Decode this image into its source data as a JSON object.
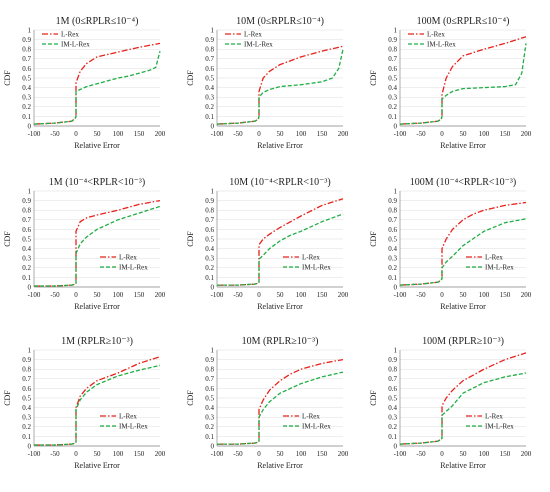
{
  "chart_data": [
    {
      "type": "line",
      "title": "1M (0≤RPLR≤10⁻⁴)",
      "xlabel": "Relative Error",
      "ylabel": "CDF",
      "xlim": [
        -100,
        200
      ],
      "ylim": [
        0,
        1
      ],
      "xticks": [
        "-100",
        "-50",
        "0",
        "50",
        "100",
        "150",
        "200"
      ],
      "yticks": [
        "0",
        "0.1",
        "0.2",
        "0.3",
        "0.4",
        "0.5",
        "0.6",
        "0.7",
        "0.8",
        "0.9",
        "1"
      ],
      "legend_position": "top-left",
      "series": [
        {
          "name": "L-Rex",
          "color": "#e8211a",
          "dash": "dashdot",
          "x": [
            -100,
            -50,
            -10,
            -2,
            0,
            0,
            10,
            25,
            50,
            100,
            150,
            200
          ],
          "y": [
            0.02,
            0.03,
            0.05,
            0.08,
            0.1,
            0.45,
            0.57,
            0.65,
            0.72,
            0.77,
            0.82,
            0.86
          ]
        },
        {
          "name": "IM-L-Rex",
          "color": "#1fae45",
          "dash": "dashed",
          "x": [
            -100,
            -50,
            -10,
            -2,
            0,
            0,
            10,
            25,
            50,
            75,
            100,
            125,
            150,
            175,
            190,
            200
          ],
          "y": [
            0.02,
            0.03,
            0.05,
            0.08,
            0.1,
            0.36,
            0.38,
            0.41,
            0.44,
            0.47,
            0.5,
            0.52,
            0.55,
            0.58,
            0.61,
            0.78
          ]
        }
      ]
    },
    {
      "type": "line",
      "title": "10M (0≤RPLR≤10⁻⁴)",
      "xlabel": "Relative Error",
      "ylabel": "CDF",
      "xlim": [
        -100,
        200
      ],
      "ylim": [
        0,
        1
      ],
      "xticks": [
        "-100",
        "-50",
        "0",
        "50",
        "100",
        "150",
        "200"
      ],
      "yticks": [
        "0",
        "0.1",
        "0.2",
        "0.3",
        "0.4",
        "0.5",
        "0.6",
        "0.7",
        "0.8",
        "0.9",
        "1"
      ],
      "legend_position": "top-left",
      "series": [
        {
          "name": "L-Rex",
          "color": "#e8211a",
          "dash": "dashdot",
          "x": [
            -100,
            -50,
            -10,
            -2,
            0,
            0,
            10,
            25,
            50,
            100,
            150,
            200
          ],
          "y": [
            0.02,
            0.03,
            0.05,
            0.07,
            0.1,
            0.36,
            0.5,
            0.57,
            0.64,
            0.72,
            0.78,
            0.83
          ]
        },
        {
          "name": "IM-L-Rex",
          "color": "#1fae45",
          "dash": "dashed",
          "x": [
            -100,
            -50,
            -10,
            -2,
            0,
            0,
            10,
            25,
            50,
            100,
            150,
            175,
            190,
            200
          ],
          "y": [
            0.02,
            0.03,
            0.05,
            0.07,
            0.1,
            0.3,
            0.35,
            0.38,
            0.41,
            0.43,
            0.46,
            0.5,
            0.6,
            0.8
          ]
        }
      ]
    },
    {
      "type": "line",
      "title": "100M (0≤RPLR≤10⁻⁴)",
      "xlabel": "Relative Error",
      "ylabel": "CDF",
      "xlim": [
        -100,
        200
      ],
      "ylim": [
        0,
        1
      ],
      "xticks": [
        "-100",
        "-50",
        "0",
        "50",
        "100",
        "150",
        "200"
      ],
      "yticks": [
        "0",
        "0.1",
        "0.2",
        "0.3",
        "0.4",
        "0.5",
        "0.6",
        "0.7",
        "0.8",
        "0.9",
        "1"
      ],
      "legend_position": "top-left",
      "series": [
        {
          "name": "L-Rex",
          "color": "#e8211a",
          "dash": "dashdot",
          "x": [
            -100,
            -50,
            -10,
            -2,
            0,
            0,
            10,
            25,
            50,
            100,
            150,
            200
          ],
          "y": [
            0.02,
            0.03,
            0.05,
            0.07,
            0.1,
            0.33,
            0.5,
            0.62,
            0.73,
            0.8,
            0.86,
            0.93
          ]
        },
        {
          "name": "IM-L-Rex",
          "color": "#1fae45",
          "dash": "dashed",
          "x": [
            -100,
            -50,
            -10,
            -2,
            0,
            0,
            10,
            25,
            50,
            100,
            150,
            175,
            190,
            200
          ],
          "y": [
            0.02,
            0.03,
            0.05,
            0.07,
            0.1,
            0.28,
            0.32,
            0.36,
            0.39,
            0.4,
            0.41,
            0.43,
            0.55,
            0.86
          ]
        }
      ]
    },
    {
      "type": "line",
      "title": "1M (10⁻⁴<RPLR<10⁻³)",
      "xlabel": "Relative Error",
      "ylabel": "CDF",
      "xlim": [
        -100,
        200
      ],
      "ylim": [
        0,
        1
      ],
      "xticks": [
        "-100",
        "-50",
        "0",
        "50",
        "100",
        "150",
        "200"
      ],
      "yticks": [
        "0",
        "0.1",
        "0.2",
        "0.3",
        "0.4",
        "0.5",
        "0.6",
        "0.7",
        "0.8",
        "0.9",
        "1"
      ],
      "legend_position": "bottom-right",
      "series": [
        {
          "name": "L-Rex",
          "color": "#e8211a",
          "dash": "dashdot",
          "x": [
            -100,
            -50,
            -10,
            -2,
            0,
            0,
            10,
            25,
            50,
            100,
            150,
            200
          ],
          "y": [
            0.01,
            0.01,
            0.02,
            0.03,
            0.04,
            0.58,
            0.68,
            0.72,
            0.75,
            0.8,
            0.86,
            0.9
          ]
        },
        {
          "name": "IM-L-Rex",
          "color": "#1fae45",
          "dash": "dashed",
          "x": [
            -100,
            -50,
            -10,
            -2,
            0,
            0,
            10,
            25,
            50,
            100,
            150,
            200
          ],
          "y": [
            0.01,
            0.01,
            0.02,
            0.03,
            0.04,
            0.35,
            0.45,
            0.52,
            0.6,
            0.7,
            0.77,
            0.84
          ]
        }
      ]
    },
    {
      "type": "line",
      "title": "10M (10⁻⁴<RPLR<10⁻³)",
      "xlabel": "Relative Error",
      "ylabel": "CDF",
      "xlim": [
        -100,
        200
      ],
      "ylim": [
        0,
        1
      ],
      "xticks": [
        "-100",
        "-50",
        "0",
        "50",
        "100",
        "150",
        "200"
      ],
      "yticks": [
        "0",
        "0.1",
        "0.2",
        "0.3",
        "0.4",
        "0.5",
        "0.6",
        "0.7",
        "0.8",
        "0.9",
        "1"
      ],
      "legend_position": "bottom-right",
      "series": [
        {
          "name": "L-Rex",
          "color": "#e8211a",
          "dash": "dashdot",
          "x": [
            -100,
            -50,
            -10,
            -2,
            0,
            0,
            10,
            25,
            50,
            100,
            150,
            200
          ],
          "y": [
            0.02,
            0.02,
            0.03,
            0.04,
            0.05,
            0.44,
            0.5,
            0.55,
            0.62,
            0.74,
            0.85,
            0.92
          ]
        },
        {
          "name": "IM-L-Rex",
          "color": "#1fae45",
          "dash": "dashed",
          "x": [
            -100,
            -50,
            -10,
            -2,
            0,
            0,
            10,
            25,
            50,
            75,
            100,
            150,
            200
          ],
          "y": [
            0.02,
            0.02,
            0.03,
            0.04,
            0.05,
            0.29,
            0.33,
            0.4,
            0.48,
            0.54,
            0.58,
            0.68,
            0.76
          ]
        }
      ]
    },
    {
      "type": "line",
      "title": "100M (10⁻⁴<RPLR<10⁻³)",
      "xlabel": "Relative Error",
      "ylabel": "CDF",
      "xlim": [
        -100,
        200
      ],
      "ylim": [
        0,
        1
      ],
      "xticks": [
        "-100",
        "-50",
        "0",
        "50",
        "100",
        "150",
        "200"
      ],
      "yticks": [
        "0",
        "0.1",
        "0.2",
        "0.3",
        "0.4",
        "0.5",
        "0.6",
        "0.7",
        "0.8",
        "0.9",
        "1"
      ],
      "legend_position": "bottom-right",
      "series": [
        {
          "name": "L-Rex",
          "color": "#e8211a",
          "dash": "dashdot",
          "x": [
            -100,
            -50,
            -10,
            -2,
            0,
            0,
            10,
            25,
            50,
            75,
            100,
            150,
            200
          ],
          "y": [
            0.02,
            0.03,
            0.05,
            0.07,
            0.09,
            0.4,
            0.5,
            0.6,
            0.7,
            0.76,
            0.8,
            0.85,
            0.88
          ]
        },
        {
          "name": "IM-L-Rex",
          "color": "#1fae45",
          "dash": "dashed",
          "x": [
            -100,
            -50,
            -10,
            -2,
            0,
            0,
            10,
            25,
            50,
            100,
            150,
            200
          ],
          "y": [
            0.02,
            0.03,
            0.05,
            0.07,
            0.09,
            0.2,
            0.26,
            0.32,
            0.43,
            0.58,
            0.67,
            0.71
          ]
        }
      ]
    },
    {
      "type": "line",
      "title": "1M (RPLR≥10⁻³)",
      "xlabel": "Relative Error",
      "ylabel": "CDF",
      "xlim": [
        -100,
        200
      ],
      "ylim": [
        0,
        1
      ],
      "xticks": [
        "-100",
        "-50",
        "0",
        "50",
        "100",
        "150",
        "200"
      ],
      "yticks": [
        "0",
        "0.1",
        "0.2",
        "0.3",
        "0.4",
        "0.5",
        "0.6",
        "0.7",
        "0.8",
        "0.9",
        "1"
      ],
      "legend_position": "bottom-right",
      "series": [
        {
          "name": "L-Rex",
          "color": "#e8211a",
          "dash": "dashdot",
          "x": [
            -100,
            -50,
            -10,
            -2,
            0,
            0,
            10,
            25,
            50,
            100,
            150,
            200
          ],
          "y": [
            0.01,
            0.01,
            0.02,
            0.03,
            0.04,
            0.4,
            0.52,
            0.6,
            0.68,
            0.76,
            0.86,
            0.93
          ]
        },
        {
          "name": "IM-L-Rex",
          "color": "#1fae45",
          "dash": "dashed",
          "x": [
            -100,
            -50,
            -10,
            -2,
            0,
            0,
            10,
            25,
            50,
            100,
            150,
            200
          ],
          "y": [
            0.01,
            0.01,
            0.02,
            0.03,
            0.04,
            0.38,
            0.48,
            0.56,
            0.64,
            0.73,
            0.79,
            0.84
          ]
        }
      ]
    },
    {
      "type": "line",
      "title": "10M (RPLR≥10⁻³)",
      "xlabel": "Relative Error",
      "ylabel": "CDF",
      "xlim": [
        -100,
        200
      ],
      "ylim": [
        0,
        1
      ],
      "xticks": [
        "-100",
        "-50",
        "0",
        "50",
        "100",
        "150",
        "200"
      ],
      "yticks": [
        "0",
        "0.1",
        "0.2",
        "0.3",
        "0.4",
        "0.5",
        "0.6",
        "0.7",
        "0.8",
        "0.9",
        "1"
      ],
      "legend_position": "bottom-right",
      "series": [
        {
          "name": "L-Rex",
          "color": "#e8211a",
          "dash": "dashdot",
          "x": [
            -100,
            -50,
            -10,
            -2,
            0,
            0,
            10,
            25,
            50,
            75,
            100,
            150,
            200
          ],
          "y": [
            0.02,
            0.02,
            0.03,
            0.04,
            0.05,
            0.38,
            0.48,
            0.58,
            0.68,
            0.75,
            0.8,
            0.86,
            0.9
          ]
        },
        {
          "name": "IM-L-Rex",
          "color": "#1fae45",
          "dash": "dashed",
          "x": [
            -100,
            -50,
            -10,
            -2,
            0,
            0,
            10,
            25,
            50,
            100,
            150,
            200
          ],
          "y": [
            0.02,
            0.02,
            0.03,
            0.04,
            0.05,
            0.3,
            0.38,
            0.46,
            0.55,
            0.65,
            0.72,
            0.77
          ]
        }
      ]
    },
    {
      "type": "line",
      "title": "100M (RPLR≥10⁻³)",
      "xlabel": "Relative Error",
      "ylabel": "CDF",
      "xlim": [
        -100,
        200
      ],
      "ylim": [
        0,
        1
      ],
      "xticks": [
        "-100",
        "-50",
        "0",
        "50",
        "100",
        "150",
        "200"
      ],
      "yticks": [
        "0",
        "0.1",
        "0.2",
        "0.3",
        "0.4",
        "0.5",
        "0.6",
        "0.7",
        "0.8",
        "0.9",
        "1"
      ],
      "legend_position": "bottom-right",
      "series": [
        {
          "name": "L-Rex",
          "color": "#e8211a",
          "dash": "dashdot",
          "x": [
            -100,
            -50,
            -10,
            -2,
            0,
            0,
            10,
            25,
            50,
            100,
            150,
            200
          ],
          "y": [
            0.02,
            0.03,
            0.05,
            0.07,
            0.08,
            0.42,
            0.5,
            0.58,
            0.68,
            0.8,
            0.9,
            0.97
          ]
        },
        {
          "name": "IM-L-Rex",
          "color": "#1fae45",
          "dash": "dashed",
          "x": [
            -100,
            -50,
            -10,
            -2,
            0,
            0,
            10,
            25,
            50,
            100,
            150,
            200
          ],
          "y": [
            0.02,
            0.03,
            0.05,
            0.07,
            0.08,
            0.32,
            0.36,
            0.42,
            0.55,
            0.66,
            0.72,
            0.76
          ]
        }
      ]
    }
  ]
}
